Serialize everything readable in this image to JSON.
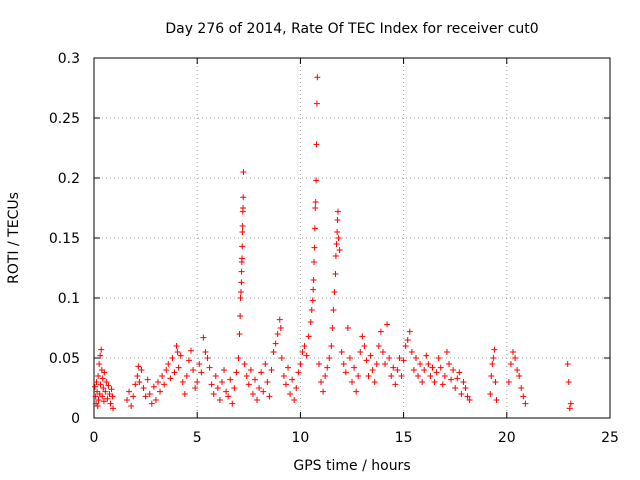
{
  "chart_data": {
    "type": "scatter",
    "title": "Day 276 of 2014, Rate Of TEC Index for receiver cut0",
    "xlabel": "GPS time / hours",
    "ylabel": "ROTI / TECUs",
    "xlim": [
      0,
      25
    ],
    "ylim": [
      0,
      0.3
    ],
    "x_ticks": [
      0,
      5,
      10,
      15,
      20,
      25
    ],
    "y_ticks": [
      0,
      0.05,
      0.1,
      0.15,
      0.2,
      0.25,
      0.3
    ],
    "x_tick_labels": [
      "0",
      "5",
      "10",
      "15",
      "20",
      "25"
    ],
    "y_tick_labels": [
      "0",
      "0.05",
      "0.1",
      "0.15",
      "0.2",
      "0.25",
      "0.3"
    ],
    "grid": true,
    "marker": "plus",
    "color": "#ff0000",
    "series": [
      {
        "name": "ROTI",
        "points": [
          [
            0.05,
            0.026
          ],
          [
            0.08,
            0.018
          ],
          [
            0.1,
            0.012
          ],
          [
            0.12,
            0.03
          ],
          [
            0.15,
            0.022
          ],
          [
            0.18,
            0.01
          ],
          [
            0.2,
            0.035
          ],
          [
            0.22,
            0.015
          ],
          [
            0.25,
            0.045
          ],
          [
            0.28,
            0.02
          ],
          [
            0.3,
            0.052
          ],
          [
            0.32,
            0.028
          ],
          [
            0.35,
            0.057
          ],
          [
            0.38,
            0.04
          ],
          [
            0.4,
            0.018
          ],
          [
            0.42,
            0.033
          ],
          [
            0.45,
            0.025
          ],
          [
            0.48,
            0.014
          ],
          [
            0.5,
            0.038
          ],
          [
            0.55,
            0.022
          ],
          [
            0.6,
            0.03
          ],
          [
            0.65,
            0.016
          ],
          [
            0.7,
            0.027
          ],
          [
            0.75,
            0.02
          ],
          [
            0.8,
            0.012
          ],
          [
            0.85,
            0.024
          ],
          [
            0.9,
            0.018
          ],
          [
            0.92,
            0.008
          ],
          [
            1.6,
            0.015
          ],
          [
            1.7,
            0.022
          ],
          [
            1.8,
            0.01
          ],
          [
            1.9,
            0.018
          ],
          [
            2.0,
            0.028
          ],
          [
            2.1,
            0.035
          ],
          [
            2.15,
            0.043
          ],
          [
            2.2,
            0.03
          ],
          [
            2.3,
            0.04
          ],
          [
            2.4,
            0.025
          ],
          [
            2.5,
            0.018
          ],
          [
            2.6,
            0.032
          ],
          [
            2.7,
            0.02
          ],
          [
            2.8,
            0.012
          ],
          [
            2.9,
            0.026
          ],
          [
            3.0,
            0.015
          ],
          [
            3.1,
            0.03
          ],
          [
            3.2,
            0.022
          ],
          [
            3.3,
            0.035
          ],
          [
            3.4,
            0.028
          ],
          [
            3.5,
            0.04
          ],
          [
            3.6,
            0.045
          ],
          [
            3.7,
            0.033
          ],
          [
            3.8,
            0.05
          ],
          [
            3.9,
            0.038
          ],
          [
            4.0,
            0.06
          ],
          [
            4.05,
            0.055
          ],
          [
            4.1,
            0.042
          ],
          [
            4.2,
            0.052
          ],
          [
            4.3,
            0.03
          ],
          [
            4.4,
            0.02
          ],
          [
            4.5,
            0.035
          ],
          [
            4.6,
            0.048
          ],
          [
            4.7,
            0.056
          ],
          [
            4.8,
            0.04
          ],
          [
            4.9,
            0.025
          ],
          [
            5.0,
            0.03
          ],
          [
            5.1,
            0.045
          ],
          [
            5.2,
            0.038
          ],
          [
            5.3,
            0.067
          ],
          [
            5.4,
            0.055
          ],
          [
            5.5,
            0.05
          ],
          [
            5.6,
            0.042
          ],
          [
            5.7,
            0.028
          ],
          [
            5.8,
            0.02
          ],
          [
            5.9,
            0.035
          ],
          [
            6.0,
            0.025
          ],
          [
            6.1,
            0.015
          ],
          [
            6.2,
            0.03
          ],
          [
            6.3,
            0.04
          ],
          [
            6.4,
            0.022
          ],
          [
            6.5,
            0.018
          ],
          [
            6.6,
            0.032
          ],
          [
            6.7,
            0.012
          ],
          [
            6.8,
            0.025
          ],
          [
            6.9,
            0.038
          ],
          [
            7.0,
            0.05
          ],
          [
            7.05,
            0.07
          ],
          [
            7.08,
            0.085
          ],
          [
            7.1,
            0.1
          ],
          [
            7.12,
            0.105
          ],
          [
            7.14,
            0.113
          ],
          [
            7.15,
            0.122
          ],
          [
            7.16,
            0.13
          ],
          [
            7.17,
            0.133
          ],
          [
            7.18,
            0.143
          ],
          [
            7.19,
            0.155
          ],
          [
            7.2,
            0.16
          ],
          [
            7.21,
            0.172
          ],
          [
            7.22,
            0.175
          ],
          [
            7.23,
            0.184
          ],
          [
            7.24,
            0.205
          ],
          [
            7.3,
            0.045
          ],
          [
            7.4,
            0.035
          ],
          [
            7.5,
            0.028
          ],
          [
            7.6,
            0.04
          ],
          [
            7.7,
            0.02
          ],
          [
            7.8,
            0.032
          ],
          [
            7.9,
            0.015
          ],
          [
            8.0,
            0.025
          ],
          [
            8.1,
            0.038
          ],
          [
            8.2,
            0.022
          ],
          [
            8.3,
            0.045
          ],
          [
            8.4,
            0.03
          ],
          [
            8.5,
            0.018
          ],
          [
            8.6,
            0.04
          ],
          [
            8.7,
            0.055
          ],
          [
            8.8,
            0.062
          ],
          [
            8.9,
            0.07
          ],
          [
            9.0,
            0.082
          ],
          [
            9.05,
            0.075
          ],
          [
            9.1,
            0.05
          ],
          [
            9.2,
            0.035
          ],
          [
            9.3,
            0.028
          ],
          [
            9.4,
            0.042
          ],
          [
            9.5,
            0.02
          ],
          [
            9.6,
            0.032
          ],
          [
            9.7,
            0.015
          ],
          [
            9.8,
            0.025
          ],
          [
            9.9,
            0.038
          ],
          [
            10.0,
            0.045
          ],
          [
            10.1,
            0.055
          ],
          [
            10.2,
            0.06
          ],
          [
            10.3,
            0.052
          ],
          [
            10.4,
            0.068
          ],
          [
            10.5,
            0.08
          ],
          [
            10.55,
            0.09
          ],
          [
            10.6,
            0.098
          ],
          [
            10.62,
            0.107
          ],
          [
            10.64,
            0.115
          ],
          [
            10.66,
            0.13
          ],
          [
            10.68,
            0.142
          ],
          [
            10.7,
            0.158
          ],
          [
            10.72,
            0.175
          ],
          [
            10.74,
            0.18
          ],
          [
            10.76,
            0.198
          ],
          [
            10.78,
            0.228
          ],
          [
            10.8,
            0.262
          ],
          [
            10.82,
            0.284
          ],
          [
            10.9,
            0.045
          ],
          [
            11.0,
            0.03
          ],
          [
            11.1,
            0.022
          ],
          [
            11.2,
            0.035
          ],
          [
            11.3,
            0.042
          ],
          [
            11.4,
            0.05
          ],
          [
            11.5,
            0.06
          ],
          [
            11.55,
            0.075
          ],
          [
            11.6,
            0.09
          ],
          [
            11.65,
            0.105
          ],
          [
            11.7,
            0.12
          ],
          [
            11.72,
            0.135
          ],
          [
            11.75,
            0.145
          ],
          [
            11.78,
            0.155
          ],
          [
            11.8,
            0.165
          ],
          [
            11.82,
            0.172
          ],
          [
            11.85,
            0.15
          ],
          [
            11.9,
            0.14
          ],
          [
            12.0,
            0.055
          ],
          [
            12.1,
            0.045
          ],
          [
            12.2,
            0.038
          ],
          [
            12.3,
            0.075
          ],
          [
            12.4,
            0.05
          ],
          [
            12.5,
            0.03
          ],
          [
            12.6,
            0.042
          ],
          [
            12.7,
            0.022
          ],
          [
            12.8,
            0.035
          ],
          [
            12.9,
            0.055
          ],
          [
            13.0,
            0.068
          ],
          [
            13.1,
            0.06
          ],
          [
            13.2,
            0.048
          ],
          [
            13.3,
            0.035
          ],
          [
            13.4,
            0.052
          ],
          [
            13.5,
            0.04
          ],
          [
            13.6,
            0.03
          ],
          [
            13.7,
            0.045
          ],
          [
            13.8,
            0.06
          ],
          [
            13.9,
            0.072
          ],
          [
            14.0,
            0.055
          ],
          [
            14.1,
            0.045
          ],
          [
            14.2,
            0.078
          ],
          [
            14.3,
            0.05
          ],
          [
            14.4,
            0.035
          ],
          [
            14.5,
            0.042
          ],
          [
            14.6,
            0.028
          ],
          [
            14.7,
            0.04
          ],
          [
            14.8,
            0.05
          ],
          [
            14.9,
            0.035
          ],
          [
            15.0,
            0.048
          ],
          [
            15.1,
            0.06
          ],
          [
            15.2,
            0.065
          ],
          [
            15.3,
            0.072
          ],
          [
            15.4,
            0.055
          ],
          [
            15.5,
            0.04
          ],
          [
            15.6,
            0.05
          ],
          [
            15.7,
            0.035
          ],
          [
            15.8,
            0.045
          ],
          [
            15.9,
            0.03
          ],
          [
            16.0,
            0.04
          ],
          [
            16.1,
            0.052
          ],
          [
            16.2,
            0.045
          ],
          [
            16.3,
            0.035
          ],
          [
            16.4,
            0.042
          ],
          [
            16.5,
            0.03
          ],
          [
            16.6,
            0.038
          ],
          [
            16.7,
            0.05
          ],
          [
            16.8,
            0.042
          ],
          [
            16.9,
            0.028
          ],
          [
            17.0,
            0.035
          ],
          [
            17.1,
            0.055
          ],
          [
            17.2,
            0.045
          ],
          [
            17.3,
            0.032
          ],
          [
            17.4,
            0.04
          ],
          [
            17.5,
            0.025
          ],
          [
            17.6,
            0.033
          ],
          [
            17.7,
            0.038
          ],
          [
            17.8,
            0.02
          ],
          [
            17.9,
            0.03
          ],
          [
            18.0,
            0.025
          ],
          [
            18.1,
            0.018
          ],
          [
            18.2,
            0.015
          ],
          [
            19.2,
            0.02
          ],
          [
            19.25,
            0.035
          ],
          [
            19.3,
            0.045
          ],
          [
            19.35,
            0.05
          ],
          [
            19.4,
            0.057
          ],
          [
            19.45,
            0.03
          ],
          [
            19.5,
            0.015
          ],
          [
            20.1,
            0.03
          ],
          [
            20.2,
            0.045
          ],
          [
            20.3,
            0.055
          ],
          [
            20.4,
            0.05
          ],
          [
            20.5,
            0.04
          ],
          [
            20.6,
            0.035
          ],
          [
            20.7,
            0.025
          ],
          [
            20.8,
            0.018
          ],
          [
            20.9,
            0.012
          ],
          [
            22.95,
            0.045
          ],
          [
            23.0,
            0.03
          ],
          [
            23.05,
            0.008
          ],
          [
            23.1,
            0.012
          ]
        ]
      }
    ]
  }
}
